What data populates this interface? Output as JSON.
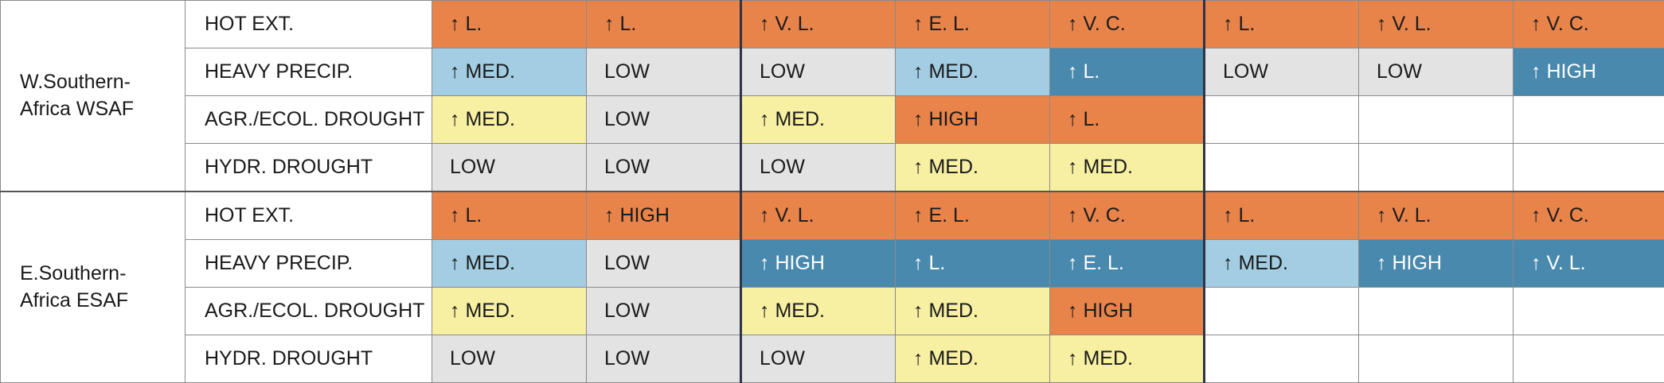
{
  "regions": [
    {
      "name": "W.Southern-\nAfrica WSAF",
      "rows": [
        {
          "variable": "HOT EXT.",
          "cells": [
            {
              "text": "↑ L.",
              "color": "orange"
            },
            {
              "text": "↑ L.",
              "color": "orange"
            },
            {
              "text": "↑ V. L.",
              "color": "orange"
            },
            {
              "text": "↑ E. L.",
              "color": "orange"
            },
            {
              "text": "↑ V. C.",
              "color": "orange"
            },
            {
              "text": "↑ L.",
              "color": "orange"
            },
            {
              "text": "↑ V. L.",
              "color": "orange"
            },
            {
              "text": "↑ V. C.",
              "color": "orange"
            }
          ]
        },
        {
          "variable": "HEAVY PRECIP.",
          "cells": [
            {
              "text": "↑ MED.",
              "color": "lblue"
            },
            {
              "text": "LOW",
              "color": "grey"
            },
            {
              "text": "LOW",
              "color": "grey"
            },
            {
              "text": "↑ MED.",
              "color": "lblue"
            },
            {
              "text": "↑ L.",
              "color": "blue"
            },
            {
              "text": "LOW",
              "color": "grey"
            },
            {
              "text": "LOW",
              "color": "grey"
            },
            {
              "text": "↑ HIGH",
              "color": "blue"
            }
          ]
        },
        {
          "variable": "AGR./ECOL. DROUGHT",
          "cells": [
            {
              "text": "↑ MED.",
              "color": "yellow"
            },
            {
              "text": "LOW",
              "color": "grey"
            },
            {
              "text": "↑ MED.",
              "color": "yellow"
            },
            {
              "text": "↑ HIGH",
              "color": "orange"
            },
            {
              "text": "↑ L.",
              "color": "orange"
            },
            {
              "text": "",
              "color": "white"
            },
            {
              "text": "",
              "color": "white"
            },
            {
              "text": "",
              "color": "white"
            }
          ]
        },
        {
          "variable": "HYDR. DROUGHT",
          "cells": [
            {
              "text": "LOW",
              "color": "grey"
            },
            {
              "text": "LOW",
              "color": "grey"
            },
            {
              "text": "LOW",
              "color": "grey"
            },
            {
              "text": "↑ MED.",
              "color": "yellow"
            },
            {
              "text": "↑ MED.",
              "color": "yellow"
            },
            {
              "text": "",
              "color": "white"
            },
            {
              "text": "",
              "color": "white"
            },
            {
              "text": "",
              "color": "white"
            }
          ]
        }
      ]
    },
    {
      "name": "E.Southern-\nAfrica ESAF",
      "rows": [
        {
          "variable": "HOT EXT.",
          "cells": [
            {
              "text": "↑ L.",
              "color": "orange"
            },
            {
              "text": "↑ HIGH",
              "color": "orange"
            },
            {
              "text": "↑ V. L.",
              "color": "orange"
            },
            {
              "text": "↑ E. L.",
              "color": "orange"
            },
            {
              "text": "↑ V. C.",
              "color": "orange"
            },
            {
              "text": "↑ L.",
              "color": "orange"
            },
            {
              "text": "↑ V. L.",
              "color": "orange"
            },
            {
              "text": "↑ V. C.",
              "color": "orange"
            }
          ]
        },
        {
          "variable": "HEAVY PRECIP.",
          "cells": [
            {
              "text": "↑ MED.",
              "color": "lblue"
            },
            {
              "text": "LOW",
              "color": "grey"
            },
            {
              "text": "↑ HIGH",
              "color": "blue"
            },
            {
              "text": "↑ L.",
              "color": "blue"
            },
            {
              "text": "↑ E. L.",
              "color": "blue"
            },
            {
              "text": "↑ MED.",
              "color": "lblue"
            },
            {
              "text": "↑ HIGH",
              "color": "blue"
            },
            {
              "text": "↑ V. L.",
              "color": "blue"
            }
          ]
        },
        {
          "variable": "AGR./ECOL. DROUGHT",
          "cells": [
            {
              "text": "↑ MED.",
              "color": "yellow"
            },
            {
              "text": "LOW",
              "color": "grey"
            },
            {
              "text": "↑ MED.",
              "color": "yellow"
            },
            {
              "text": "↑ MED.",
              "color": "yellow"
            },
            {
              "text": "↑ HIGH",
              "color": "orange"
            },
            {
              "text": "",
              "color": "white"
            },
            {
              "text": "",
              "color": "white"
            },
            {
              "text": "",
              "color": "white"
            }
          ]
        },
        {
          "variable": "HYDR. DROUGHT",
          "cells": [
            {
              "text": "LOW",
              "color": "grey"
            },
            {
              "text": "LOW",
              "color": "grey"
            },
            {
              "text": "LOW",
              "color": "grey"
            },
            {
              "text": "↑ MED.",
              "color": "yellow"
            },
            {
              "text": "↑ MED.",
              "color": "yellow"
            },
            {
              "text": "",
              "color": "white"
            },
            {
              "text": "",
              "color": "white"
            },
            {
              "text": "",
              "color": "white"
            }
          ]
        }
      ]
    }
  ],
  "colors": {
    "orange": "#e8844a",
    "grey": "#e3e3e3",
    "lblue": "#a3cde3",
    "blue": "#4889ad",
    "yellow": "#f7efa1",
    "white": "#ffffff"
  }
}
